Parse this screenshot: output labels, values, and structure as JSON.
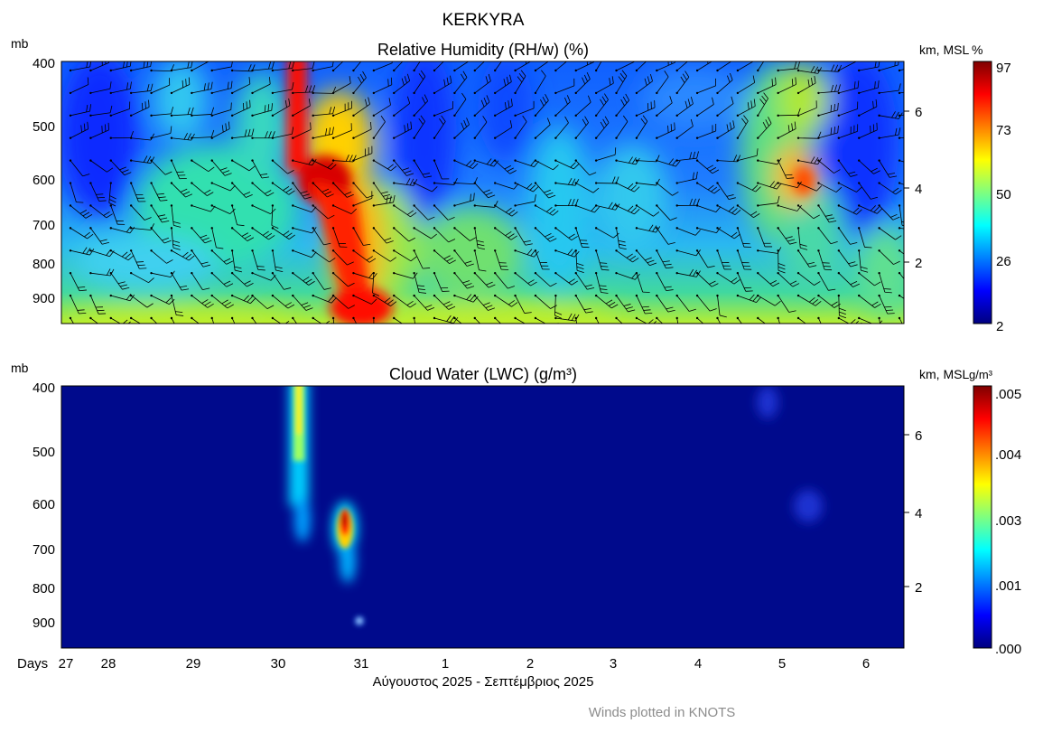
{
  "title": "KERKYRA",
  "footer_note": "Winds plotted in KNOTS",
  "x_axis": {
    "prefix": "Days",
    "label": "Αύγουστος 2025 - Σεπτέμβριος 2025",
    "ticks": [
      "27",
      "28",
      "29",
      "30",
      "31",
      "1",
      "2",
      "3",
      "4",
      "5",
      "6"
    ]
  },
  "chart_data": [
    {
      "type": "heatmap",
      "title": "Relative Humidity (RH/w) (%)",
      "ylabel_left": "mb",
      "ylabel_right": "km, MSL",
      "colorbar_unit": "%",
      "y_ticks_left": [
        "400",
        "500",
        "600",
        "700",
        "800",
        "900"
      ],
      "y_ticks_right": [
        "6",
        "4",
        "2"
      ],
      "colorbar_ticks": [
        "97",
        "73",
        "50",
        "26",
        "2"
      ],
      "colorbar_range": [
        2,
        97
      ],
      "overlay": "wind barbs",
      "features": [
        {
          "x_day": 30.35,
          "pressure_mb": 600,
          "value_pct": 95,
          "desc": "deep moist column, upper to mid levels"
        },
        {
          "x_day": 30.9,
          "pressure_mb": 930,
          "value_pct": 95,
          "desc": "near-surface maximum"
        },
        {
          "x_day": 5.3,
          "pressure_mb": 590,
          "value_pct": 80,
          "desc": "mid-level maximum"
        }
      ]
    },
    {
      "type": "heatmap",
      "title": "Cloud Water (LWC) (g/m³)",
      "ylabel_left": "mb",
      "ylabel_right": "km, MSL",
      "colorbar_unit": "g/m³",
      "y_ticks_left": [
        "400",
        "500",
        "600",
        "700",
        "800",
        "900"
      ],
      "y_ticks_right": [
        "6",
        "4",
        "2"
      ],
      "colorbar_ticks": [
        ".005",
        ".004",
        ".003",
        ".001",
        ".000"
      ],
      "colorbar_range": [
        0,
        0.0052
      ],
      "features": [
        {
          "x_day": 30.3,
          "pressure_mb": 500,
          "value": 0.0028,
          "desc": "vertical band 400-640 mb"
        },
        {
          "x_day": 30.85,
          "pressure_mb": 620,
          "value": 0.005,
          "desc": "core 580-720 mb"
        },
        {
          "x_day": 30.95,
          "pressure_mb": 900,
          "value": 0.0008,
          "desc": "small blob"
        },
        {
          "x_day": 5.3,
          "pressure_mb": 600,
          "value": 0.0003,
          "desc": "faint blob"
        }
      ]
    }
  ]
}
